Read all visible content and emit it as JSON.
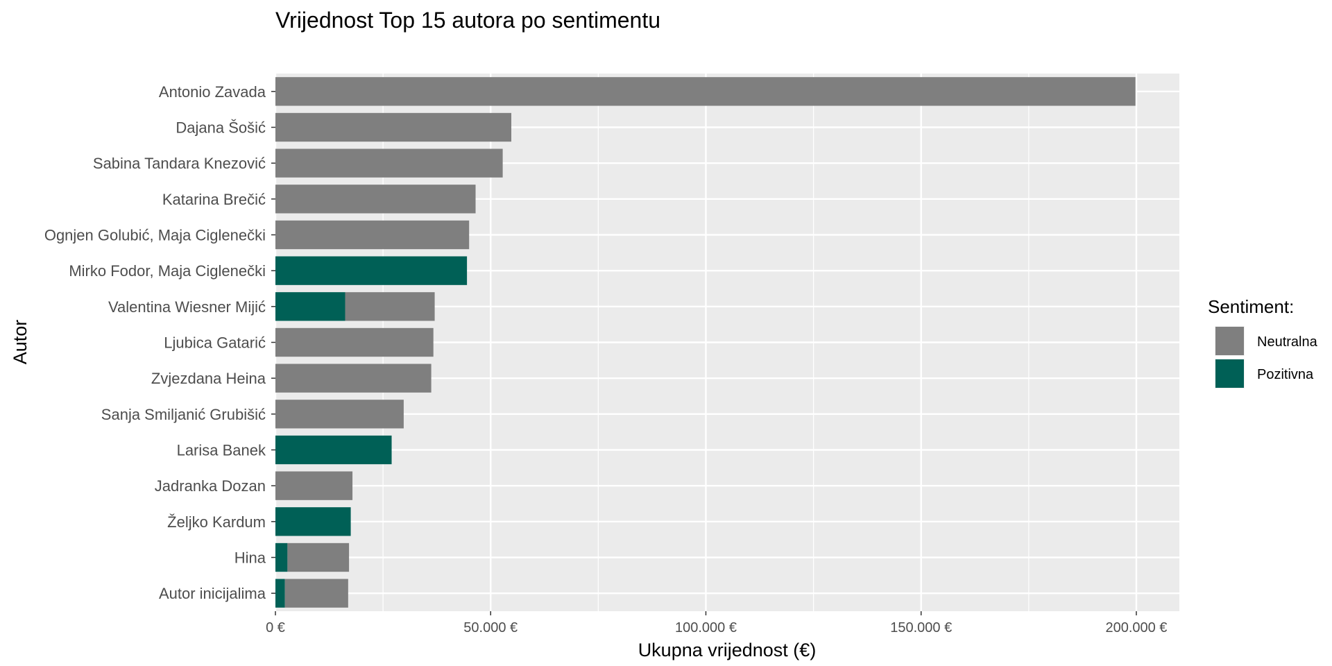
{
  "chart_data": {
    "type": "bar",
    "orientation": "horizontal",
    "stacked": true,
    "title": "Vrijednost Top 15 autora po sentimentu",
    "xlabel": "Ukupna vrijednost (€)",
    "ylabel": "Autor",
    "xlim": [
      0,
      210000
    ],
    "xticks": [
      0,
      50000,
      100000,
      150000,
      200000
    ],
    "xtick_labels": [
      "0 €",
      "50.000 €",
      "100.000 €",
      "150.000 €",
      "200.000 €"
    ],
    "grid": true,
    "legend_title": "Sentiment:",
    "legend_position": "right",
    "categories": [
      "Antonio Zavada",
      "Dajana Šošić",
      "Sabina Tandara Knezović",
      "Katarina Brečić",
      "Ognjen Golubić,  Maja Ciglenečki",
      "Mirko Fodor,  Maja Ciglenečki",
      "Valentina Wiesner Mijić",
      "Ljubica Gatarić",
      "Zvjezdana Heina",
      "Sanja Smiljanić Grubišić",
      "Larisa Banek",
      "Jadranka Dozan",
      "Željko Kardum",
      "Hina",
      "Autor inicijalima"
    ],
    "series": [
      {
        "name": "Pozitivna",
        "color": "#006056",
        "values": [
          0,
          0,
          0,
          0,
          0,
          44500,
          16200,
          0,
          0,
          0,
          27000,
          0,
          17500,
          2800,
          2200
        ]
      },
      {
        "name": "Neutralna",
        "color": "#7f7f7f",
        "values": [
          199800,
          54800,
          52800,
          46500,
          45000,
          0,
          20800,
          36700,
          36200,
          29800,
          0,
          17900,
          0,
          14300,
          14700
        ]
      }
    ],
    "legend_order": [
      "Neutralna",
      "Pozitivna"
    ]
  }
}
